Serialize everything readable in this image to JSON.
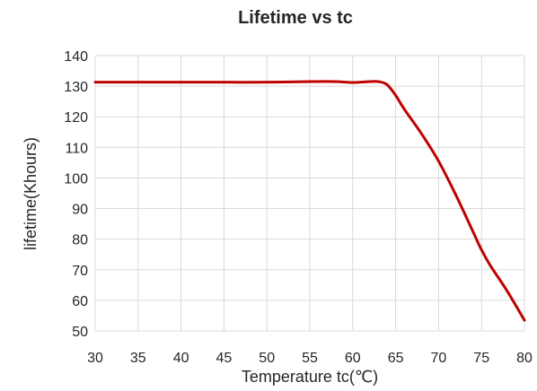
{
  "chart_data": {
    "type": "line",
    "title": "Lifetime vs tc",
    "xlabel": "Temperature tc(℃)",
    "ylabel": "lifetime(Khours)",
    "xlim": [
      30,
      80
    ],
    "ylim": [
      50,
      140
    ],
    "x_ticks": [
      30,
      35,
      40,
      45,
      50,
      55,
      60,
      65,
      70,
      75,
      80
    ],
    "y_ticks": [
      50,
      60,
      70,
      80,
      90,
      100,
      110,
      120,
      130,
      140
    ],
    "grid": true,
    "legend": "none",
    "series": [
      {
        "color": "#c00000",
        "x": [
          30,
          35,
          40,
          45,
          50,
          55,
          58,
          60,
          62,
          63,
          64,
          65,
          66,
          68,
          70,
          72,
          74,
          75,
          76,
          78,
          80
        ],
        "y": [
          131.3,
          131.3,
          131.3,
          131.3,
          131.3,
          131.5,
          131.5,
          131.2,
          131.5,
          131.5,
          130.5,
          127,
          122.5,
          114.5,
          105.5,
          94.5,
          82.5,
          76.5,
          71.5,
          63,
          53.5
        ]
      }
    ]
  }
}
